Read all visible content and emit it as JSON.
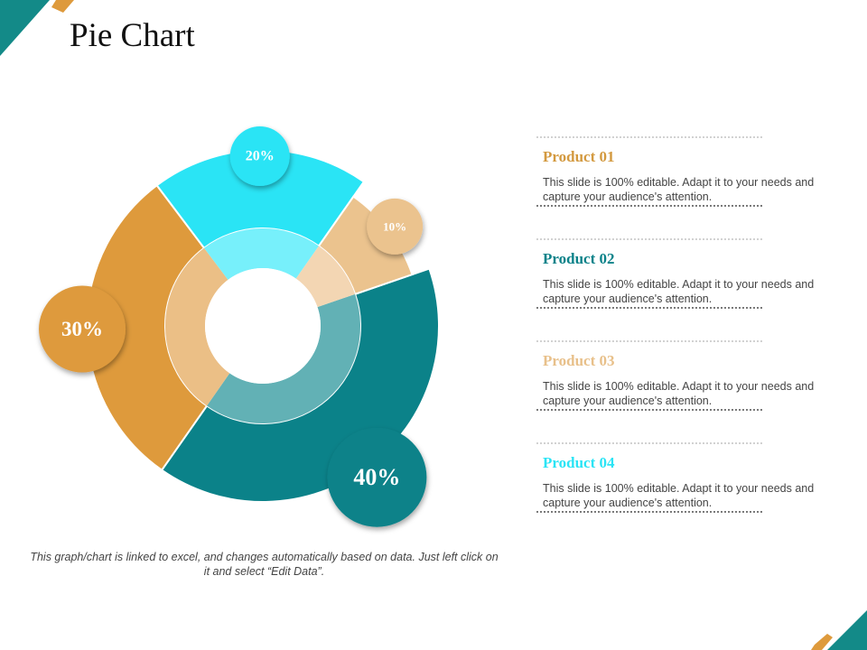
{
  "colors": {
    "teal": "#0b8289",
    "light_tan": "#ebc38e",
    "cyan": "#2ae4f5",
    "orange": "#de9a3c",
    "corner_teal": "#138a88"
  },
  "page": {
    "title": "Pie Chart"
  },
  "chart_data": {
    "type": "pie",
    "subtype": "doughnut",
    "slices": [
      {
        "label": "40%",
        "value": 40,
        "color": "#0b8289",
        "inner_color": "#62b1b5"
      },
      {
        "label": "30%",
        "value": 30,
        "color": "#de9a3c",
        "inner_color": "#ebbf86"
      },
      {
        "label": "20%",
        "value": 20,
        "color": "#2ae4f5",
        "inner_color": "#77f0fb"
      },
      {
        "label": "10%",
        "value": 10,
        "color": "#ebc38e",
        "inner_color": "#f3d6b3"
      }
    ]
  },
  "legend": [
    {
      "title": "Product 01",
      "title_color": "#d3993f",
      "description": "This slide is 100% editable. Adapt it to your needs and capture your audience's attention."
    },
    {
      "title": "Product 02",
      "title_color": "#0b8289",
      "description": "This slide is 100% editable. Adapt it to your needs and capture your audience's attention."
    },
    {
      "title": "Product 03",
      "title_color": "#e8c08a",
      "description": "This slide is 100% editable. Adapt it to your needs and capture your audience's attention."
    },
    {
      "title": "Product 04",
      "title_color": "#2ae4f5",
      "description": "This slide is 100% editable. Adapt it to your needs and capture your audience's attention."
    }
  ],
  "footnote": "This graph/chart is linked to excel,  and changes automatically based on data. Just left click on it and select “Edit Data”."
}
